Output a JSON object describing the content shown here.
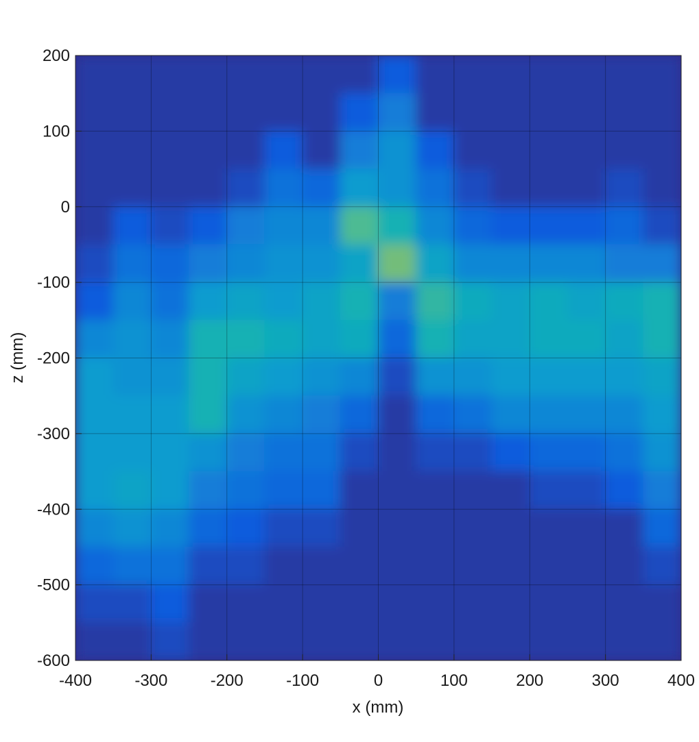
{
  "chart_data": {
    "type": "heatmap",
    "xlabel": "x (mm)",
    "ylabel": "z (mm)",
    "xlim": [
      -400,
      400
    ],
    "ylim": [
      -600,
      200
    ],
    "xticks": [
      -400,
      -300,
      -200,
      -100,
      0,
      100,
      200,
      300,
      400
    ],
    "yticks": [
      -600,
      -500,
      -400,
      -300,
      -200,
      -100,
      0,
      100,
      200
    ],
    "grid": true,
    "colormap": "parula",
    "x": [
      -375,
      -325,
      -275,
      -225,
      -175,
      -125,
      -75,
      -25,
      25,
      75,
      125,
      175,
      225,
      275,
      325,
      375
    ],
    "y": [
      175,
      125,
      75,
      25,
      -25,
      -75,
      -125,
      -175,
      -225,
      -275,
      -325,
      -375,
      -425,
      -475,
      -525,
      -575
    ],
    "values": [
      [
        0.05,
        0.05,
        0.05,
        0.05,
        0.05,
        0.05,
        0.05,
        0.05,
        0.15,
        0.05,
        0.05,
        0.05,
        0.05,
        0.05,
        0.05,
        0.05
      ],
      [
        0.05,
        0.05,
        0.05,
        0.05,
        0.05,
        0.05,
        0.05,
        0.15,
        0.3,
        0.05,
        0.05,
        0.05,
        0.05,
        0.05,
        0.05,
        0.05
      ],
      [
        0.05,
        0.05,
        0.05,
        0.05,
        0.05,
        0.15,
        0.05,
        0.3,
        0.4,
        0.15,
        0.05,
        0.05,
        0.05,
        0.05,
        0.05,
        0.05
      ],
      [
        0.05,
        0.05,
        0.05,
        0.05,
        0.1,
        0.25,
        0.2,
        0.45,
        0.4,
        0.25,
        0.1,
        0.05,
        0.05,
        0.05,
        0.1,
        0.05
      ],
      [
        0.05,
        0.15,
        0.1,
        0.15,
        0.3,
        0.35,
        0.35,
        0.7,
        0.6,
        0.35,
        0.2,
        0.15,
        0.15,
        0.15,
        0.2,
        0.1
      ],
      [
        0.1,
        0.25,
        0.2,
        0.3,
        0.35,
        0.4,
        0.4,
        0.5,
        0.75,
        0.5,
        0.35,
        0.35,
        0.35,
        0.35,
        0.3,
        0.3
      ],
      [
        0.15,
        0.35,
        0.25,
        0.45,
        0.5,
        0.45,
        0.5,
        0.6,
        0.3,
        0.65,
        0.55,
        0.5,
        0.55,
        0.5,
        0.55,
        0.6
      ],
      [
        0.35,
        0.4,
        0.35,
        0.6,
        0.6,
        0.55,
        0.5,
        0.55,
        0.2,
        0.6,
        0.5,
        0.5,
        0.55,
        0.55,
        0.5,
        0.6
      ],
      [
        0.45,
        0.4,
        0.4,
        0.6,
        0.5,
        0.45,
        0.4,
        0.35,
        0.1,
        0.4,
        0.4,
        0.45,
        0.45,
        0.45,
        0.45,
        0.5
      ],
      [
        0.45,
        0.45,
        0.45,
        0.6,
        0.4,
        0.35,
        0.3,
        0.2,
        0.05,
        0.2,
        0.25,
        0.35,
        0.35,
        0.35,
        0.35,
        0.45
      ],
      [
        0.45,
        0.45,
        0.45,
        0.4,
        0.3,
        0.25,
        0.25,
        0.1,
        0.05,
        0.1,
        0.1,
        0.15,
        0.2,
        0.2,
        0.25,
        0.4
      ],
      [
        0.45,
        0.5,
        0.45,
        0.3,
        0.25,
        0.2,
        0.2,
        0.05,
        0.05,
        0.05,
        0.05,
        0.05,
        0.1,
        0.1,
        0.15,
        0.3
      ],
      [
        0.35,
        0.4,
        0.35,
        0.2,
        0.15,
        0.1,
        0.1,
        0.05,
        0.05,
        0.05,
        0.05,
        0.05,
        0.05,
        0.05,
        0.05,
        0.2
      ],
      [
        0.2,
        0.25,
        0.25,
        0.1,
        0.1,
        0.05,
        0.05,
        0.05,
        0.05,
        0.05,
        0.05,
        0.05,
        0.05,
        0.05,
        0.05,
        0.1
      ],
      [
        0.1,
        0.1,
        0.15,
        0.05,
        0.05,
        0.05,
        0.05,
        0.05,
        0.05,
        0.05,
        0.05,
        0.05,
        0.05,
        0.05,
        0.05,
        0.05
      ],
      [
        0.05,
        0.05,
        0.1,
        0.05,
        0.05,
        0.05,
        0.05,
        0.05,
        0.05,
        0.05,
        0.05,
        0.05,
        0.05,
        0.05,
        0.05,
        0.05
      ]
    ]
  }
}
